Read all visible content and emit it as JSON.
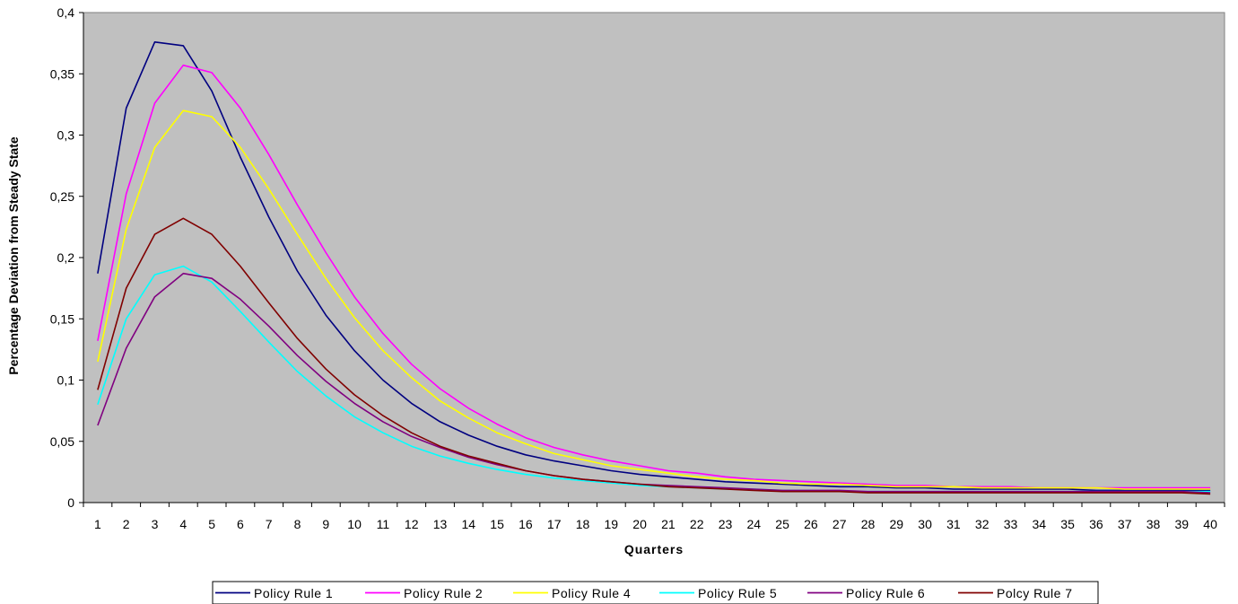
{
  "chart_data": {
    "type": "line",
    "title": "",
    "xlabel": "Quarters",
    "ylabel": "Percentage Deviation from Steady State",
    "ylim": [
      0,
      0.4
    ],
    "yticks": [
      "0",
      "0,05",
      "0,1",
      "0,15",
      "0,2",
      "0,25",
      "0,3",
      "0,35",
      "0,4"
    ],
    "x": [
      1,
      2,
      3,
      4,
      5,
      6,
      7,
      8,
      9,
      10,
      11,
      12,
      13,
      14,
      15,
      16,
      17,
      18,
      19,
      20,
      21,
      22,
      23,
      24,
      25,
      26,
      27,
      28,
      29,
      30,
      31,
      32,
      33,
      34,
      35,
      36,
      37,
      38,
      39,
      40
    ],
    "x_labels": [
      "1",
      "2",
      "3",
      "4",
      "5",
      "6",
      "7",
      "8",
      "9",
      "10",
      "11",
      "12",
      "13",
      "14",
      "15",
      "16",
      "17",
      "18",
      "19",
      "20",
      "21",
      "22",
      "23",
      "24",
      "25",
      "26",
      "27",
      "28",
      "29",
      "30",
      "31",
      "32",
      "33",
      "34",
      "35",
      "36",
      "37",
      "38",
      "39",
      "40"
    ],
    "grid": false,
    "legend_position": "bottom",
    "background": "#c0c0c0",
    "series": [
      {
        "name": "Policy Rule 1",
        "color": "#000080",
        "values": [
          0.187,
          0.322,
          0.376,
          0.373,
          0.336,
          0.282,
          0.233,
          0.189,
          0.153,
          0.124,
          0.1,
          0.081,
          0.066,
          0.055,
          0.046,
          0.039,
          0.034,
          0.03,
          0.026,
          0.023,
          0.021,
          0.019,
          0.017,
          0.016,
          0.015,
          0.014,
          0.013,
          0.013,
          0.012,
          0.012,
          0.011,
          0.011,
          0.011,
          0.011,
          0.011,
          0.01,
          0.01,
          0.01,
          0.01,
          0.01
        ]
      },
      {
        "name": "Policy Rule 2",
        "color": "#ff00ff",
        "values": [
          0.132,
          0.252,
          0.326,
          0.357,
          0.351,
          0.322,
          0.284,
          0.243,
          0.204,
          0.168,
          0.138,
          0.113,
          0.093,
          0.077,
          0.064,
          0.053,
          0.045,
          0.039,
          0.034,
          0.03,
          0.026,
          0.024,
          0.021,
          0.019,
          0.018,
          0.017,
          0.016,
          0.015,
          0.014,
          0.014,
          0.013,
          0.013,
          0.013,
          0.012,
          0.012,
          0.012,
          0.012,
          0.012,
          0.012,
          0.012
        ]
      },
      {
        "name": "Policy Rule 4",
        "color": "#ffff00",
        "values": [
          0.115,
          0.223,
          0.29,
          0.32,
          0.315,
          0.29,
          0.256,
          0.219,
          0.183,
          0.151,
          0.124,
          0.102,
          0.083,
          0.069,
          0.057,
          0.048,
          0.04,
          0.035,
          0.03,
          0.027,
          0.024,
          0.021,
          0.019,
          0.018,
          0.016,
          0.015,
          0.015,
          0.014,
          0.013,
          0.013,
          0.013,
          0.012,
          0.012,
          0.012,
          0.012,
          0.012,
          0.011,
          0.011,
          0.011,
          0.011
        ]
      },
      {
        "name": "Policy Rule 5",
        "color": "#00ffff",
        "values": [
          0.08,
          0.15,
          0.186,
          0.193,
          0.18,
          0.156,
          0.131,
          0.107,
          0.087,
          0.07,
          0.057,
          0.046,
          0.038,
          0.032,
          0.027,
          0.023,
          0.02,
          0.018,
          0.016,
          0.014,
          0.013,
          0.012,
          0.011,
          0.011,
          0.01,
          0.01,
          0.009,
          0.009,
          0.009,
          0.009,
          0.009,
          0.009,
          0.009,
          0.009,
          0.009,
          0.009,
          0.009,
          0.009,
          0.009,
          0.009
        ]
      },
      {
        "name": "Policy Rule 6",
        "color": "#800080",
        "values": [
          0.063,
          0.126,
          0.168,
          0.187,
          0.183,
          0.166,
          0.144,
          0.12,
          0.099,
          0.081,
          0.066,
          0.054,
          0.045,
          0.037,
          0.031,
          0.026,
          0.022,
          0.019,
          0.017,
          0.015,
          0.014,
          0.013,
          0.012,
          0.011,
          0.01,
          0.01,
          0.01,
          0.009,
          0.009,
          0.009,
          0.009,
          0.009,
          0.009,
          0.009,
          0.009,
          0.009,
          0.009,
          0.009,
          0.009,
          0.008
        ]
      },
      {
        "name": "Polcy Rule 7",
        "color": "#800000",
        "values": [
          0.092,
          0.175,
          0.219,
          0.232,
          0.219,
          0.193,
          0.163,
          0.134,
          0.109,
          0.088,
          0.071,
          0.057,
          0.046,
          0.038,
          0.032,
          0.026,
          0.022,
          0.019,
          0.017,
          0.015,
          0.013,
          0.012,
          0.011,
          0.01,
          0.009,
          0.009,
          0.009,
          0.008,
          0.008,
          0.008,
          0.008,
          0.008,
          0.008,
          0.008,
          0.008,
          0.008,
          0.008,
          0.008,
          0.008,
          0.007
        ]
      }
    ]
  }
}
